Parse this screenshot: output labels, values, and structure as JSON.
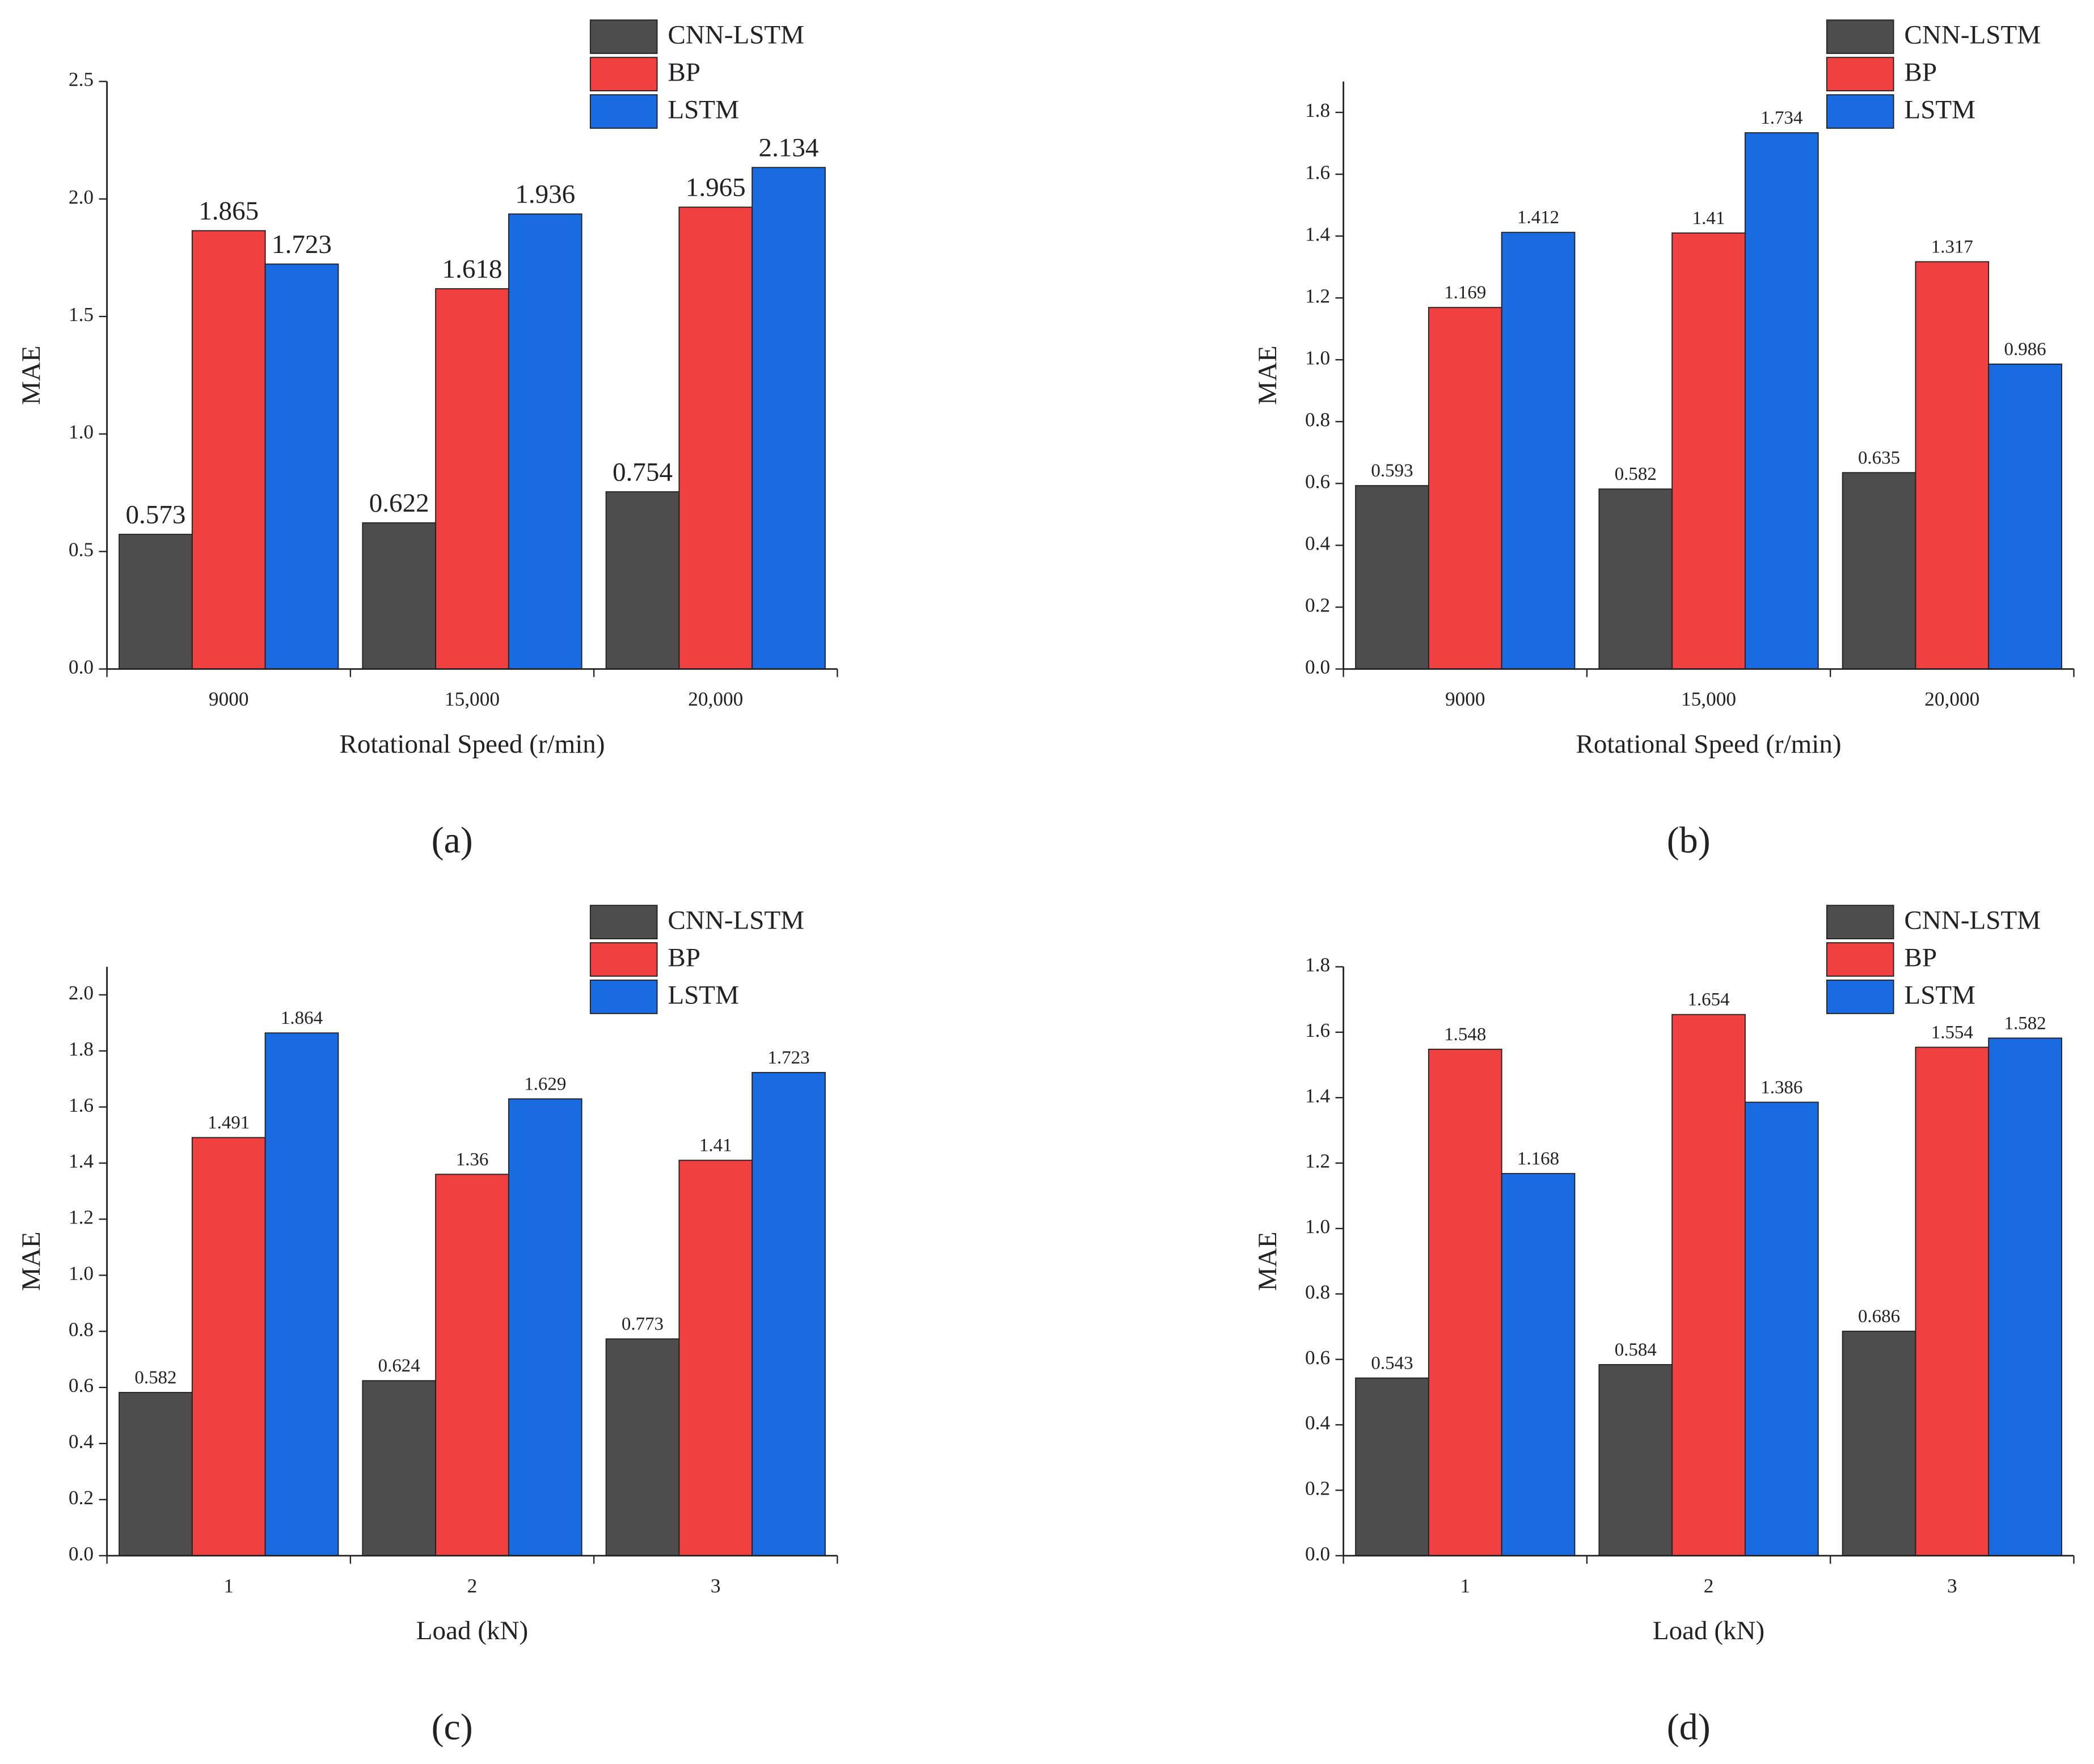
{
  "chart_data": [
    {
      "type": "bar",
      "panel": "(a)",
      "xlabel": "Rotational Speed (r/min)",
      "ylabel": "MAE",
      "categories": [
        "9000",
        "15,000",
        "20,000"
      ],
      "series": [
        {
          "name": "CNN-LSTM",
          "color": "#4d4d4d",
          "values": [
            0.573,
            0.622,
            0.754
          ]
        },
        {
          "name": "BP",
          "color": "#f04040",
          "values": [
            1.865,
            1.618,
            1.965
          ]
        },
        {
          "name": "LSTM",
          "color": "#1a6ae0",
          "values": [
            1.723,
            1.936,
            2.134
          ]
        }
      ],
      "ylim": [
        0,
        2.5
      ],
      "yticks": [
        {
          "value": 0,
          "label": "0.0"
        },
        0.5,
        {
          "value": 1,
          "label": "1.0"
        },
        1.5,
        {
          "value": 2,
          "label": "2.0"
        },
        2.5
      ],
      "legend": "upper right"
    },
    {
      "type": "bar",
      "panel": "(b)",
      "xlabel": "Rotational Speed (r/min)",
      "ylabel": "MAE",
      "categories": [
        "9000",
        "15,000",
        "20,000"
      ],
      "series": [
        {
          "name": "CNN-LSTM",
          "color": "#4d4d4d",
          "values": [
            0.593,
            0.582,
            0.635
          ]
        },
        {
          "name": "BP",
          "color": "#f04040",
          "values": [
            1.169,
            1.41,
            1.317
          ]
        },
        {
          "name": "LSTM",
          "color": "#1a6ae0",
          "values": [
            1.412,
            1.734,
            0.986
          ]
        }
      ],
      "ylim": [
        0,
        1.9
      ],
      "yticks": [
        {
          "value": 0,
          "label": "0.0"
        },
        0.2,
        0.4,
        0.6,
        0.8,
        {
          "value": 1,
          "label": "1.0"
        },
        1.2,
        1.4,
        1.6,
        1.8
      ],
      "legend": "upper right"
    },
    {
      "type": "bar",
      "panel": "(c)",
      "xlabel": "Load (kN)",
      "ylabel": "MAE",
      "categories": [
        "1",
        "2",
        "3"
      ],
      "series": [
        {
          "name": "CNN-LSTM",
          "color": "#4d4d4d",
          "values": [
            0.582,
            0.624,
            0.773
          ]
        },
        {
          "name": "BP",
          "color": "#f04040",
          "values": [
            1.491,
            1.36,
            1.41
          ]
        },
        {
          "name": "LSTM",
          "color": "#1a6ae0",
          "values": [
            1.864,
            1.629,
            1.723
          ]
        }
      ],
      "ylim": [
        0,
        2.1
      ],
      "yticks": [
        {
          "value": 0,
          "label": "0.0"
        },
        0.2,
        0.4,
        0.6,
        0.8,
        {
          "value": 1,
          "label": "1.0"
        },
        1.2,
        1.4,
        1.6,
        1.8,
        {
          "value": 2,
          "label": "2.0"
        }
      ],
      "legend": "upper right"
    },
    {
      "type": "bar",
      "panel": "(d)",
      "xlabel": "Load (kN)",
      "ylabel": "MAE",
      "categories": [
        "1",
        "2",
        "3"
      ],
      "series": [
        {
          "name": "CNN-LSTM",
          "color": "#4d4d4d",
          "values": [
            0.543,
            0.584,
            0.686
          ]
        },
        {
          "name": "BP",
          "color": "#f04040",
          "values": [
            1.548,
            1.654,
            1.554
          ]
        },
        {
          "name": "LSTM",
          "color": "#1a6ae0",
          "values": [
            1.168,
            1.386,
            1.582
          ]
        }
      ],
      "ylim": [
        0,
        1.8
      ],
      "yticks": [
        {
          "value": 0,
          "label": "0.0"
        },
        0.2,
        0.4,
        0.6,
        0.8,
        {
          "value": 1,
          "label": "1.0"
        },
        1.2,
        1.4,
        1.6,
        1.8
      ],
      "legend": "upper right"
    }
  ]
}
